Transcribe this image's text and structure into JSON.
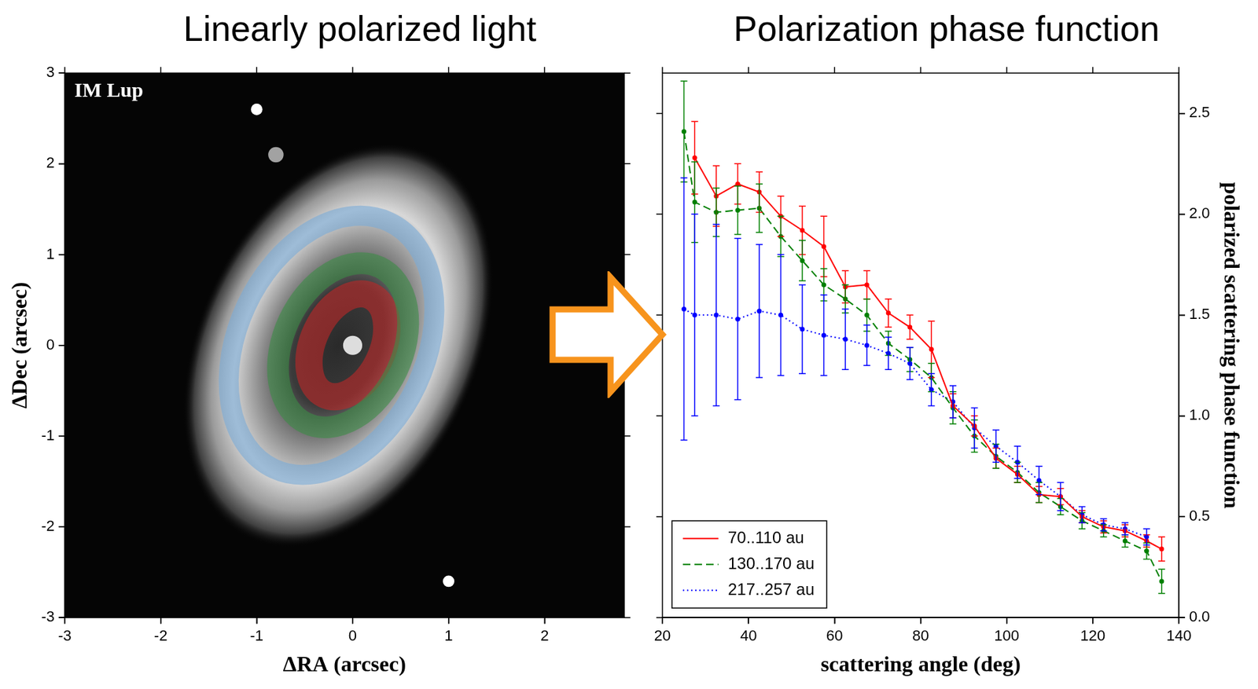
{
  "chart_data": [
    {
      "type": "image",
      "title": "Linearly polarized light",
      "annotations": [
        "IM Lup"
      ],
      "x_label": "ΔRA (arcsec)",
      "y_label": "ΔDec (arcsec)",
      "xlim": [
        -3,
        2.83
      ],
      "xticks": [
        -3,
        -2,
        -1,
        0,
        1,
        2
      ],
      "ylim": [
        -3,
        3
      ],
      "yticks": [
        -3,
        -2,
        -1,
        0,
        1,
        2,
        3
      ]
    },
    {
      "type": "line",
      "title": "Polarization phase function",
      "x_label": "scattering angle (deg)",
      "y_label": "polarized scattering phase function",
      "xlim": [
        20,
        140
      ],
      "xticks": [
        20,
        40,
        60,
        80,
        100,
        120,
        140
      ],
      "ylim": [
        0,
        2.7
      ],
      "yticks": [
        {
          "value": 0,
          "label": "0.0"
        },
        0.5,
        {
          "value": 1,
          "label": "1.0"
        },
        1.5,
        {
          "value": 2,
          "label": "2.0"
        },
        2.5
      ],
      "legend": "lower left",
      "grid": false,
      "series": [
        {
          "name": "70..110 au",
          "color": "#ff0000",
          "line_style": "solid",
          "marker": "circle",
          "x": [
            27.5,
            32.5,
            37.5,
            42.5,
            47.5,
            52.5,
            57.5,
            62.5,
            67.5,
            72.5,
            77.5,
            82.5,
            87.5,
            92.5,
            97.5,
            102.5,
            107.5,
            112.5,
            117.5,
            122.5,
            127.5,
            132.5,
            136
          ],
          "values": [
            2.28,
            2.09,
            2.15,
            2.11,
            1.99,
            1.92,
            1.84,
            1.64,
            1.65,
            1.51,
            1.44,
            1.33,
            1.05,
            0.95,
            0.79,
            0.71,
            0.61,
            0.6,
            0.5,
            0.45,
            0.43,
            0.38,
            0.34
          ],
          "errors": [
            0.18,
            0.15,
            0.1,
            0.1,
            0.1,
            0.12,
            0.15,
            0.08,
            0.07,
            0.07,
            0.06,
            0.14,
            0.06,
            0.05,
            0.05,
            0.04,
            0.04,
            0.04,
            0.03,
            0.03,
            0.03,
            0.03,
            0.06
          ]
        },
        {
          "name": "130..170 au",
          "color": "#008000",
          "line_style": "dashed",
          "marker": "circle",
          "x": [
            25,
            27.5,
            32.5,
            37.5,
            42.5,
            47.5,
            52.5,
            57.5,
            62.5,
            67.5,
            72.5,
            77.5,
            82.5,
            87.5,
            92.5,
            97.5,
            102.5,
            107.5,
            112.5,
            117.5,
            122.5,
            127.5,
            132.5,
            136
          ],
          "values": [
            2.41,
            2.06,
            2.01,
            2.02,
            2.03,
            1.89,
            1.77,
            1.65,
            1.58,
            1.5,
            1.36,
            1.28,
            1.19,
            1.04,
            0.9,
            0.8,
            0.72,
            0.62,
            0.55,
            0.48,
            0.43,
            0.38,
            0.33,
            0.18
          ],
          "errors": [
            0.25,
            0.2,
            0.12,
            0.12,
            0.12,
            0.1,
            0.1,
            0.08,
            0.07,
            0.08,
            0.06,
            0.06,
            0.07,
            0.08,
            0.08,
            0.06,
            0.05,
            0.05,
            0.04,
            0.04,
            0.03,
            0.03,
            0.04,
            0.06
          ]
        },
        {
          "name": "217..257 au",
          "color": "#0000ff",
          "line_style": "dotted",
          "marker": "circle",
          "x": [
            25,
            27.5,
            32.5,
            37.5,
            42.5,
            47.5,
            52.5,
            57.5,
            62.5,
            67.5,
            72.5,
            77.5,
            82.5,
            87.5,
            92.5,
            97.5,
            102.5,
            107.5,
            112.5,
            117.5,
            122.5,
            127.5,
            132.5
          ],
          "values": [
            1.53,
            1.5,
            1.5,
            1.48,
            1.52,
            1.5,
            1.43,
            1.4,
            1.38,
            1.35,
            1.31,
            1.26,
            1.13,
            1.07,
            0.94,
            0.85,
            0.77,
            0.68,
            0.6,
            0.51,
            0.46,
            0.44,
            0.4
          ],
          "errors": [
            0.65,
            0.5,
            0.45,
            0.4,
            0.33,
            0.3,
            0.22,
            0.2,
            0.15,
            0.1,
            0.08,
            0.08,
            0.08,
            0.08,
            0.1,
            0.08,
            0.08,
            0.07,
            0.07,
            0.04,
            0.03,
            0.03,
            0.04
          ]
        }
      ]
    }
  ]
}
